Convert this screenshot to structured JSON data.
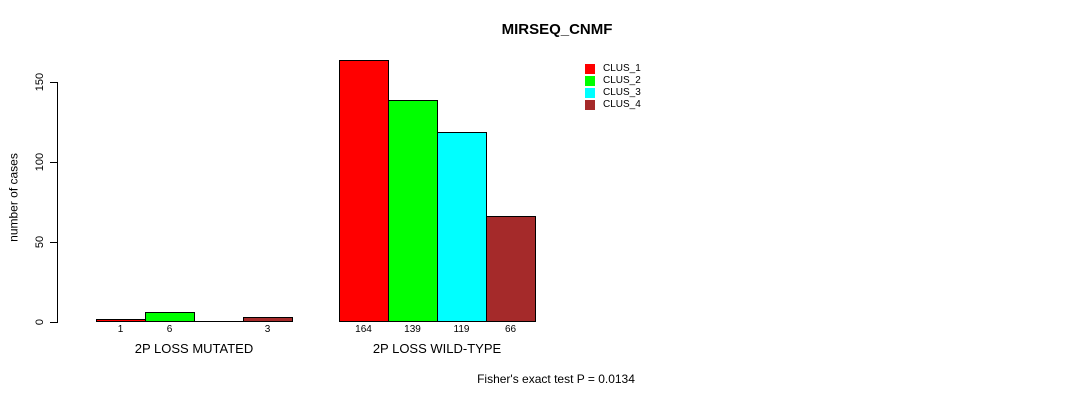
{
  "chart_data": {
    "type": "bar",
    "title": "MIRSEQ_CNMF",
    "ylabel": "number of cases",
    "xlabel": "",
    "ylim": [
      0,
      170
    ],
    "yticks": [
      0,
      50,
      100,
      150
    ],
    "grid": false,
    "legend_position": "top-right",
    "categories": [
      "2P LOSS MUTATED",
      "2P LOSS WILD-TYPE"
    ],
    "series": [
      {
        "name": "CLUS_1",
        "color": "#FF0000",
        "values": [
          1,
          164
        ]
      },
      {
        "name": "CLUS_2",
        "color": "#00FF00",
        "values": [
          6,
          139
        ]
      },
      {
        "name": "CLUS_3",
        "color": "#00FFFF",
        "values": [
          0,
          119
        ]
      },
      {
        "name": "CLUS_4",
        "color": "#A52A2A",
        "values": [
          3,
          66
        ]
      }
    ],
    "bar_value_labels_shown": true,
    "zero_value_labels_hidden": true,
    "annotation": "Fisher's exact test P = 0.0134"
  }
}
